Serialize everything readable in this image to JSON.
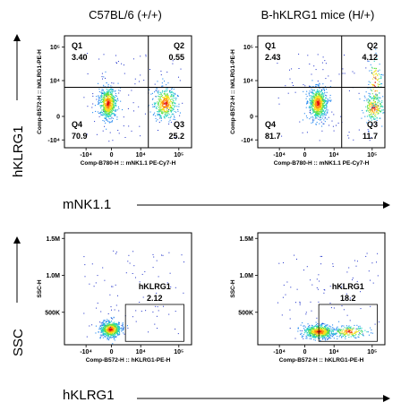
{
  "column_titles": [
    "C57BL/6 (+/+)",
    "B-hKLRG1 mice (H/+)"
  ],
  "row_labels": {
    "top_y": "hKLRG1",
    "top_x": "mNK1.1",
    "bottom_y": "SSC",
    "bottom_x": "hKLRG1"
  },
  "chart_data": [
    {
      "type": "scatter",
      "panel": "top-left",
      "xlabel": "Comp-B780-H :: mNK1.1 PE-Cy7-H",
      "ylabel": "Comp-B572-H :: hKLRG1-PE-H",
      "x_ticks": [
        "-10⁴",
        "0",
        "10⁴",
        "10⁵"
      ],
      "y_ticks": [
        "-10⁴",
        "0",
        "10⁴",
        "10⁵"
      ],
      "quadrants": [
        {
          "name": "Q1",
          "value": "3.40"
        },
        {
          "name": "Q2",
          "value": "0.55"
        },
        {
          "name": "Q3",
          "value": "25.2"
        },
        {
          "name": "Q4",
          "value": "70.9"
        }
      ]
    },
    {
      "type": "scatter",
      "panel": "top-right",
      "xlabel": "Comp-B780-H :: mNK1.1 PE-Cy7-H",
      "ylabel": "Comp-B572-H :: hKLRG1-PE-H",
      "x_ticks": [
        "-10⁴",
        "0",
        "10⁴",
        "10⁵"
      ],
      "y_ticks": [
        "-10⁴",
        "0",
        "10⁴",
        "10⁵"
      ],
      "quadrants": [
        {
          "name": "Q1",
          "value": "2.43"
        },
        {
          "name": "Q2",
          "value": "4.12"
        },
        {
          "name": "Q3",
          "value": "11.7"
        },
        {
          "name": "Q4",
          "value": "81.7"
        }
      ]
    },
    {
      "type": "scatter",
      "panel": "bottom-left",
      "xlabel": "Comp-B572-H :: hKLRG1-PE-H",
      "ylabel": "SSC-H",
      "x_ticks": [
        "-10⁴",
        "0",
        "10⁴",
        "10⁵"
      ],
      "y_ticks": [
        "1.5M",
        "1.0M",
        "500K",
        "0"
      ],
      "gate": {
        "name": "hKLRG1",
        "value": "2.12"
      }
    },
    {
      "type": "scatter",
      "panel": "bottom-right",
      "xlabel": "Comp-B572-H :: hKLRG1-PE-H",
      "ylabel": "SSC-H",
      "x_ticks": [
        "-10⁴",
        "0",
        "10⁴",
        "10⁵"
      ],
      "y_ticks": [
        "1.5M",
        "1.0M",
        "500K",
        "0"
      ],
      "gate": {
        "name": "hKLRG1",
        "value": "18.2"
      }
    }
  ]
}
